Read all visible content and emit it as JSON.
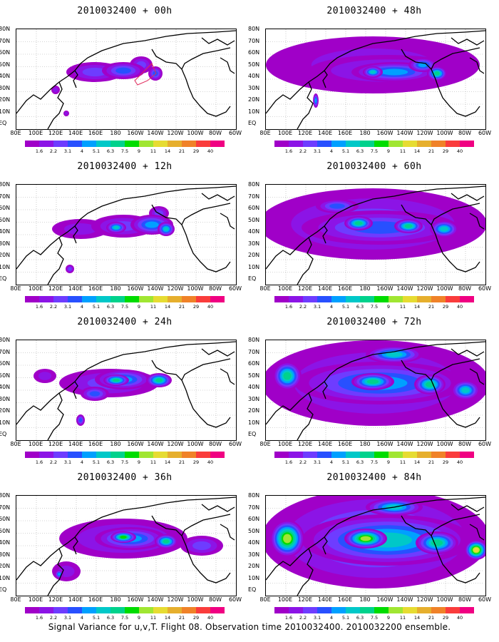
{
  "panels": [
    {
      "title": "2010032400 + 00h",
      "lead": 0
    },
    {
      "title": "2010032400 + 48h",
      "lead": 48
    },
    {
      "title": "2010032400 + 12h",
      "lead": 12
    },
    {
      "title": "2010032400 + 60h",
      "lead": 60
    },
    {
      "title": "2010032400 + 24h",
      "lead": 24
    },
    {
      "title": "2010032400 + 72h",
      "lead": 72
    },
    {
      "title": "2010032400 + 36h",
      "lead": 36
    },
    {
      "title": "2010032400 + 84h",
      "lead": 84
    }
  ],
  "lat_labels": [
    "80N",
    "70N",
    "60N",
    "50N",
    "40N",
    "30N",
    "20N",
    "10N",
    "EQ"
  ],
  "lon_labels": [
    "80E",
    "100E",
    "120E",
    "140E",
    "160E",
    "180",
    "160W",
    "140W",
    "120W",
    "100W",
    "80W",
    "60W"
  ],
  "colorbar": {
    "labels": [
      "1.6",
      "2.2",
      "3.1",
      "4",
      "5.1",
      "6.3",
      "7.5",
      "9",
      "11",
      "14",
      "21",
      "29",
      "40"
    ],
    "colors": [
      "#a000c8",
      "#8c14e6",
      "#6e3cff",
      "#2850ff",
      "#00a0ff",
      "#00c8c8",
      "#00d28c",
      "#00dc00",
      "#a0e632",
      "#e6dc32",
      "#e6af2d",
      "#f08228",
      "#fa3c3c",
      "#f00082"
    ]
  },
  "caption": "Signal Variance for u,v,T. Flight 08. Observation time 2010032400. 2010032200 ensemble."
}
